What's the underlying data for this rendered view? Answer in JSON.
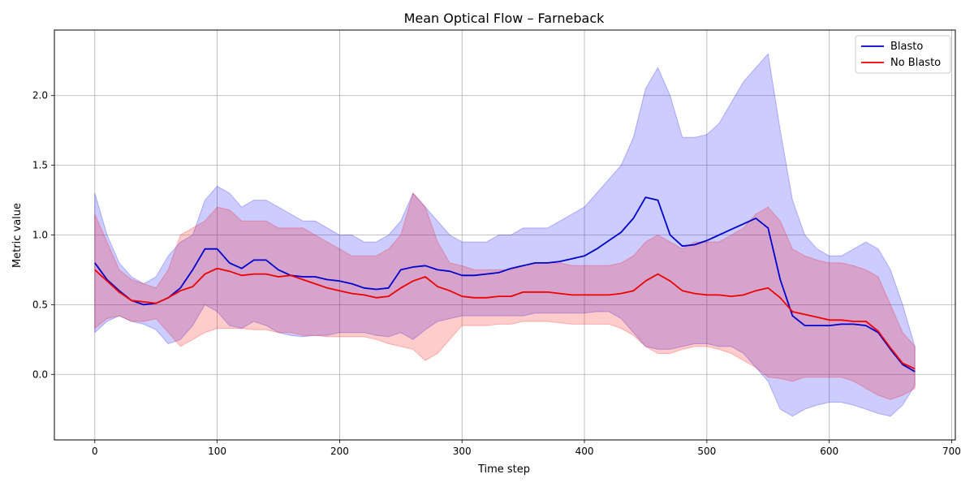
{
  "chart_data": {
    "type": "line",
    "title": "Mean Optical Flow – Farneback",
    "xlabel": "Time step",
    "ylabel": "Metric value",
    "xlim": [
      -33,
      703
    ],
    "ylim": [
      -0.47,
      2.47
    ],
    "xticks": [
      0,
      100,
      200,
      300,
      400,
      500,
      600,
      700
    ],
    "yticks": [
      0.0,
      0.5,
      1.0,
      1.5,
      2.0
    ],
    "ytick_labels": [
      "0.0",
      "0.5",
      "1.0",
      "1.5",
      "2.0"
    ],
    "grid": true,
    "legend": "top-right",
    "series": [
      {
        "name": "Blasto",
        "color": "#0000cc",
        "band_color": "#0000ff",
        "x": [
          0,
          10,
          20,
          30,
          40,
          50,
          60,
          70,
          80,
          90,
          100,
          110,
          120,
          130,
          140,
          150,
          160,
          170,
          180,
          190,
          200,
          210,
          220,
          230,
          240,
          250,
          260,
          270,
          280,
          290,
          300,
          310,
          320,
          330,
          340,
          350,
          360,
          370,
          380,
          390,
          400,
          410,
          420,
          430,
          440,
          450,
          460,
          470,
          480,
          490,
          500,
          510,
          520,
          530,
          540,
          550,
          560,
          570,
          580,
          590,
          600,
          610,
          620,
          630,
          640,
          650,
          660,
          670
        ],
        "mean": [
          0.8,
          0.68,
          0.6,
          0.53,
          0.5,
          0.51,
          0.55,
          0.62,
          0.75,
          0.9,
          0.9,
          0.8,
          0.76,
          0.82,
          0.82,
          0.75,
          0.71,
          0.7,
          0.7,
          0.68,
          0.67,
          0.65,
          0.62,
          0.61,
          0.62,
          0.75,
          0.77,
          0.78,
          0.75,
          0.74,
          0.71,
          0.71,
          0.72,
          0.73,
          0.76,
          0.78,
          0.8,
          0.8,
          0.81,
          0.83,
          0.85,
          0.9,
          0.96,
          1.02,
          1.12,
          1.27,
          1.25,
          1.0,
          0.92,
          0.93,
          0.96,
          1.0,
          1.04,
          1.08,
          1.12,
          1.05,
          0.68,
          0.42,
          0.35,
          0.35,
          0.35,
          0.36,
          0.36,
          0.35,
          0.3,
          0.18,
          0.07,
          0.02
        ],
        "upper": [
          1.3,
          1.0,
          0.8,
          0.7,
          0.65,
          0.7,
          0.85,
          0.95,
          1.0,
          1.25,
          1.35,
          1.3,
          1.2,
          1.25,
          1.25,
          1.2,
          1.15,
          1.1,
          1.1,
          1.05,
          1.0,
          1.0,
          0.95,
          0.95,
          1.0,
          1.1,
          1.3,
          1.2,
          1.1,
          1.0,
          0.95,
          0.95,
          0.95,
          1.0,
          1.0,
          1.05,
          1.05,
          1.05,
          1.1,
          1.15,
          1.2,
          1.3,
          1.4,
          1.5,
          1.7,
          2.05,
          2.2,
          2.0,
          1.7,
          1.7,
          1.72,
          1.8,
          1.95,
          2.1,
          2.2,
          2.3,
          1.75,
          1.25,
          1.0,
          0.9,
          0.85,
          0.85,
          0.9,
          0.95,
          0.9,
          0.75,
          0.5,
          0.2
        ],
        "lower": [
          0.3,
          0.38,
          0.42,
          0.38,
          0.36,
          0.32,
          0.22,
          0.25,
          0.35,
          0.5,
          0.45,
          0.35,
          0.33,
          0.38,
          0.35,
          0.3,
          0.28,
          0.27,
          0.28,
          0.28,
          0.3,
          0.3,
          0.3,
          0.28,
          0.27,
          0.3,
          0.25,
          0.32,
          0.38,
          0.4,
          0.42,
          0.42,
          0.42,
          0.42,
          0.42,
          0.42,
          0.44,
          0.44,
          0.44,
          0.44,
          0.44,
          0.45,
          0.45,
          0.4,
          0.3,
          0.2,
          0.18,
          0.18,
          0.2,
          0.22,
          0.22,
          0.2,
          0.2,
          0.15,
          0.05,
          -0.05,
          -0.25,
          -0.3,
          -0.25,
          -0.22,
          -0.2,
          -0.2,
          -0.22,
          -0.25,
          -0.28,
          -0.3,
          -0.22,
          -0.08
        ]
      },
      {
        "name": "No Blasto",
        "color": "#ee0000",
        "band_color": "#ff0000",
        "x": [
          0,
          10,
          20,
          30,
          40,
          50,
          60,
          70,
          80,
          90,
          100,
          110,
          120,
          130,
          140,
          150,
          160,
          170,
          180,
          190,
          200,
          210,
          220,
          230,
          240,
          250,
          260,
          270,
          280,
          290,
          300,
          310,
          320,
          330,
          340,
          350,
          360,
          370,
          380,
          390,
          400,
          410,
          420,
          430,
          440,
          450,
          460,
          470,
          480,
          490,
          500,
          510,
          520,
          530,
          540,
          550,
          560,
          570,
          580,
          590,
          600,
          610,
          620,
          630,
          640,
          650,
          660,
          670
        ],
        "mean": [
          0.75,
          0.67,
          0.59,
          0.53,
          0.52,
          0.51,
          0.55,
          0.6,
          0.63,
          0.72,
          0.76,
          0.74,
          0.71,
          0.72,
          0.72,
          0.7,
          0.71,
          0.68,
          0.65,
          0.62,
          0.6,
          0.58,
          0.57,
          0.55,
          0.56,
          0.62,
          0.67,
          0.7,
          0.63,
          0.6,
          0.56,
          0.55,
          0.55,
          0.56,
          0.56,
          0.59,
          0.59,
          0.59,
          0.58,
          0.57,
          0.57,
          0.57,
          0.57,
          0.58,
          0.6,
          0.67,
          0.72,
          0.67,
          0.6,
          0.58,
          0.57,
          0.57,
          0.56,
          0.57,
          0.6,
          0.62,
          0.55,
          0.45,
          0.43,
          0.41,
          0.39,
          0.39,
          0.38,
          0.38,
          0.31,
          0.19,
          0.08,
          0.04
        ],
        "upper": [
          1.15,
          0.95,
          0.75,
          0.68,
          0.65,
          0.62,
          0.75,
          1.0,
          1.05,
          1.1,
          1.2,
          1.18,
          1.1,
          1.1,
          1.1,
          1.05,
          1.05,
          1.05,
          1.0,
          0.95,
          0.9,
          0.85,
          0.85,
          0.85,
          0.9,
          1.0,
          1.3,
          1.2,
          0.95,
          0.8,
          0.78,
          0.75,
          0.75,
          0.75,
          0.75,
          0.78,
          0.8,
          0.8,
          0.8,
          0.78,
          0.78,
          0.78,
          0.78,
          0.8,
          0.85,
          0.95,
          1.0,
          0.95,
          0.9,
          0.95,
          0.95,
          0.95,
          1.0,
          1.05,
          1.15,
          1.2,
          1.1,
          0.9,
          0.85,
          0.82,
          0.8,
          0.8,
          0.78,
          0.75,
          0.7,
          0.5,
          0.3,
          0.2
        ],
        "lower": [
          0.33,
          0.4,
          0.42,
          0.38,
          0.38,
          0.4,
          0.3,
          0.2,
          0.25,
          0.3,
          0.33,
          0.33,
          0.33,
          0.32,
          0.32,
          0.3,
          0.3,
          0.28,
          0.28,
          0.27,
          0.27,
          0.27,
          0.27,
          0.25,
          0.22,
          0.2,
          0.18,
          0.1,
          0.15,
          0.25,
          0.35,
          0.35,
          0.35,
          0.36,
          0.36,
          0.38,
          0.38,
          0.38,
          0.37,
          0.36,
          0.36,
          0.36,
          0.36,
          0.33,
          0.28,
          0.2,
          0.15,
          0.15,
          0.18,
          0.2,
          0.2,
          0.18,
          0.15,
          0.1,
          0.05,
          -0.02,
          -0.03,
          -0.05,
          -0.02,
          -0.02,
          -0.02,
          -0.02,
          -0.05,
          -0.1,
          -0.15,
          -0.18,
          -0.15,
          -0.1
        ]
      }
    ]
  }
}
